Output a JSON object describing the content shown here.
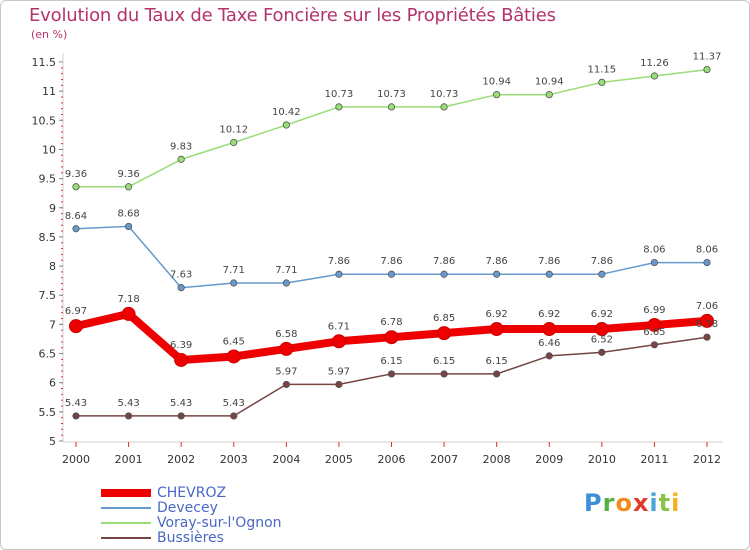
{
  "title": "Evolution du Taux de Taxe Foncière sur les Propriétés Bâties",
  "unit": "(en %)",
  "logo_text": "Proxiti",
  "chart_data": {
    "type": "line",
    "title": "Evolution du Taux de Taxe Foncière sur les Propriétés Bâties",
    "ylabel": "(en %)",
    "xlabel": "",
    "ylim": [
      5,
      11.5
    ],
    "yticks": [
      "5",
      "5.5",
      "6",
      "6.5",
      "7",
      "7.5",
      "8",
      "8.5",
      "9",
      "9.5",
      "10",
      "10.5",
      "11",
      "11.5"
    ],
    "x": [
      "2000",
      "2001",
      "2002",
      "2003",
      "2004",
      "2005",
      "2006",
      "2007",
      "2008",
      "2009",
      "2010",
      "2011",
      "2012"
    ],
    "grid": false,
    "legend_position": "bottom-left",
    "series": [
      {
        "name": "Voray-sur-l'Ognon",
        "color": "#99dd77",
        "values": [
          9.36,
          9.36,
          9.83,
          10.12,
          10.42,
          10.73,
          10.73,
          10.73,
          10.94,
          10.94,
          11.15,
          11.26,
          11.37
        ],
        "labels": [
          "9.36",
          "9.36",
          "9.83",
          "10.12",
          "10.42",
          "10.73",
          "10.73",
          "10.73",
          "10.94",
          "10.94",
          "11.15",
          "11.26",
          "11.37"
        ]
      },
      {
        "name": "Devecey",
        "color": "#6699cc",
        "values": [
          8.64,
          8.68,
          7.63,
          7.71,
          7.71,
          7.86,
          7.86,
          7.86,
          7.86,
          7.86,
          7.86,
          8.06,
          8.06
        ],
        "labels": [
          "8.64",
          "8.68",
          "7.63",
          "7.71",
          "7.71",
          "7.86",
          "7.86",
          "7.86",
          "7.86",
          "7.86",
          "7.86",
          "8.06",
          "8.06"
        ]
      },
      {
        "name": "CHEVROZ",
        "color": "#ee0000",
        "values": [
          6.97,
          7.18,
          6.39,
          6.45,
          6.58,
          6.71,
          6.78,
          6.85,
          6.92,
          6.92,
          6.92,
          6.99,
          7.06
        ],
        "labels": [
          "6.97",
          "7.18",
          "6.39",
          "6.45",
          "6.58",
          "6.71",
          "6.78",
          "6.85",
          "6.92",
          "6.92",
          "6.92",
          "6.99",
          "7.06"
        ]
      },
      {
        "name": "Bussières",
        "color": "#774444",
        "values": [
          5.43,
          5.43,
          5.43,
          5.43,
          5.97,
          5.97,
          6.15,
          6.15,
          6.15,
          6.46,
          6.52,
          6.65,
          6.78
        ],
        "labels": [
          "5.43",
          "5.43",
          "5.43",
          "5.43",
          "5.97",
          "5.97",
          "6.15",
          "6.15",
          "6.15",
          "6.46",
          "6.52",
          "6.65",
          "6.78"
        ]
      }
    ],
    "legend": [
      "CHEVROZ",
      "Devecey",
      "Voray-sur-l'Ognon",
      "Bussières"
    ]
  }
}
